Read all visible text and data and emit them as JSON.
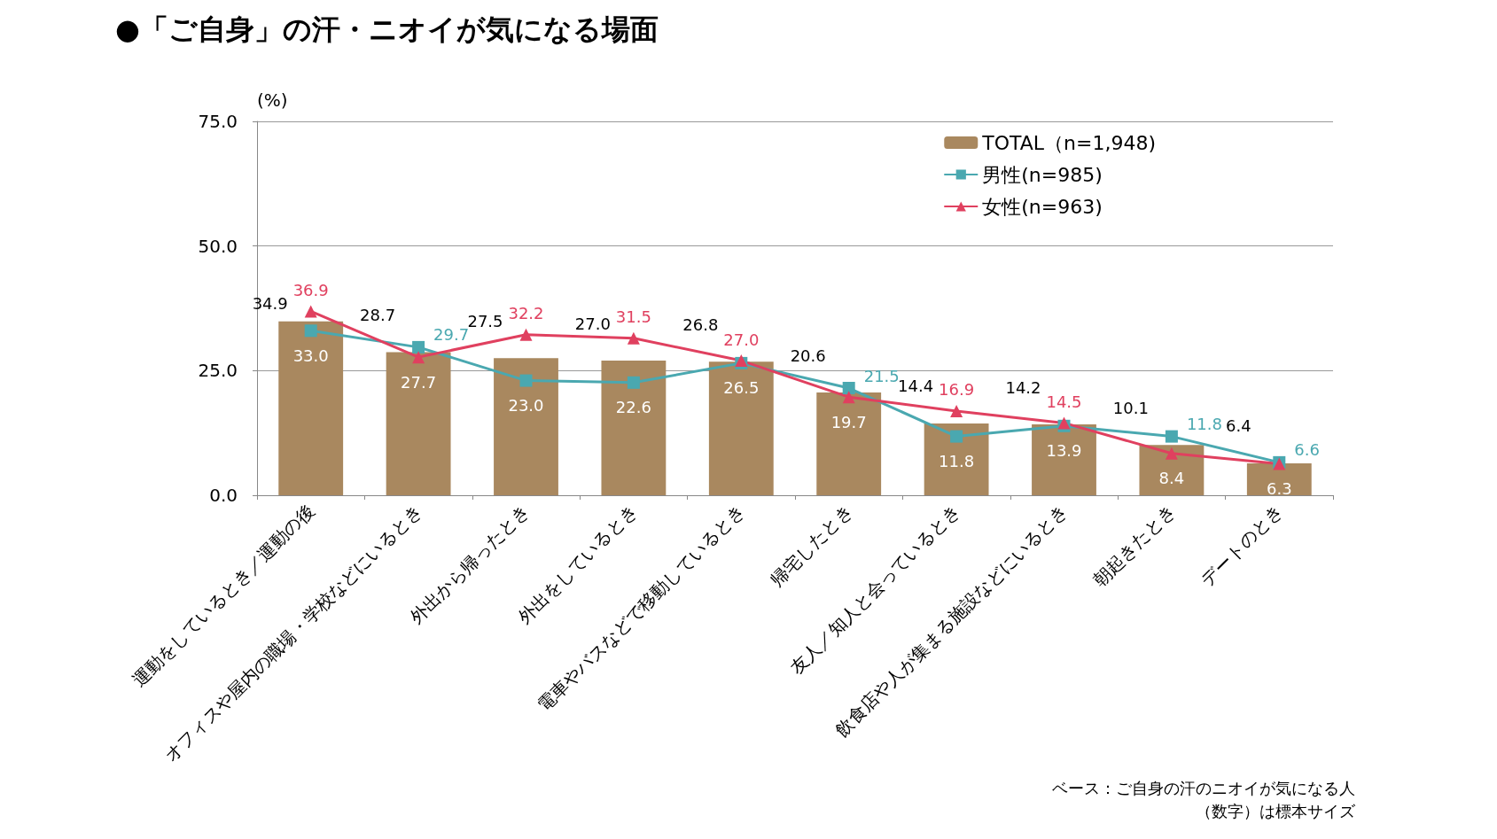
{
  "chart_data": {
    "type": "bar",
    "title": "●「ご自身」の汗・ニオイが気になる場面",
    "ylabel": "(%)",
    "categories": [
      "運動をしているとき／運動の後",
      "オフィスや屋内の職場・学校などにいるとき",
      "外出から帰ったとき",
      "外出をしているとき",
      "電車やバスなどで移動しているとき",
      "帰宅したとき",
      "友人／知人と会っているとき",
      "飲食店や人が集まる施設などにいるとき",
      "朝起きたとき",
      "デートのとき"
    ],
    "series": [
      {
        "name": "TOTAL（n=1,948)",
        "type": "bar",
        "color": "#a9885f",
        "values": [
          34.9,
          28.7,
          27.5,
          27.0,
          26.8,
          20.6,
          14.4,
          14.2,
          10.1,
          6.4
        ],
        "value_labels": [
          "34.9",
          "28.7",
          "27.5",
          "27.0",
          "26.8",
          "20.6",
          "14.4",
          "14.2",
          "10.1",
          "6.4"
        ]
      },
      {
        "name": "男性(n=985)",
        "type": "line",
        "color": "#4aa8b0",
        "marker": "square",
        "values": [
          33.0,
          29.7,
          23.0,
          22.6,
          26.5,
          21.5,
          11.8,
          13.9,
          11.8,
          6.6
        ],
        "value_labels": [
          "33.0",
          "29.7",
          "23.0",
          "22.6",
          "26.5",
          "21.5",
          "11.8",
          "13.9",
          "11.8",
          "6.6"
        ]
      },
      {
        "name": "女性(n=963)",
        "type": "line",
        "color": "#e0405f",
        "marker": "triangle",
        "values": [
          36.9,
          27.7,
          32.2,
          31.5,
          27.0,
          19.7,
          16.9,
          14.5,
          8.4,
          6.3
        ],
        "value_labels": [
          "36.9",
          "27.7",
          "32.2",
          "31.5",
          "27.0",
          "19.7",
          "16.9",
          "14.5",
          "8.4",
          "6.3"
        ]
      }
    ],
    "ylim": [
      0,
      75
    ],
    "yticks": [
      {
        "value": 0,
        "label": "0.0"
      },
      {
        "value": 25,
        "label": "25.0"
      },
      {
        "value": 50,
        "label": "50.0"
      },
      {
        "value": 75,
        "label": "75.0"
      }
    ],
    "grid": "y",
    "legend": "top right",
    "data_labels": true,
    "annotations": [
      "ベース：ご自身の汗のニオイが気になる人",
      "（数字）は標本サイズ"
    ]
  }
}
